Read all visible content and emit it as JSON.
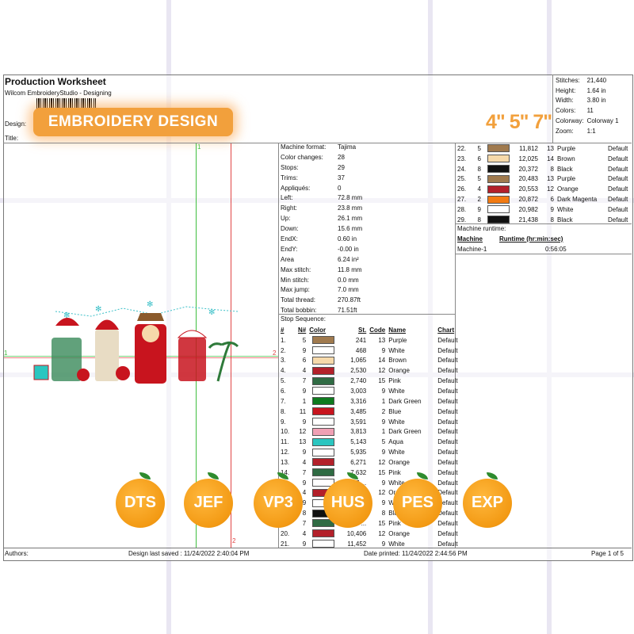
{
  "header": {
    "title": "Production Worksheet",
    "software": "Wilcom EmbroideryStudio - Designing",
    "design_label": "Design:",
    "title_label": "Title:",
    "banner": "EMBROIDERY DESIGN",
    "sizes": "4\" 5\" 7\""
  },
  "stats": [
    {
      "k": "Stitches:",
      "v": "21,440"
    },
    {
      "k": "Height:",
      "v": "1.64 in"
    },
    {
      "k": "Width:",
      "v": "3.80 in"
    },
    {
      "k": "Colors:",
      "v": "11"
    },
    {
      "k": "Colorway:",
      "v": "Colorway 1"
    },
    {
      "k": "Zoom:",
      "v": "1:1"
    }
  ],
  "machine_info": [
    {
      "k": "Machine format:",
      "v": "Tajima"
    },
    {
      "k": "Color changes:",
      "v": "28"
    },
    {
      "k": "Stops:",
      "v": "29"
    },
    {
      "k": "Trims:",
      "v": "37"
    },
    {
      "k": "Appliqués:",
      "v": "0"
    },
    {
      "k": "Left:",
      "v": "72.8 mm"
    },
    {
      "k": "Right:",
      "v": "23.8 mm"
    },
    {
      "k": "Up:",
      "v": "26.1 mm"
    },
    {
      "k": "Down:",
      "v": "15.6 mm"
    },
    {
      "k": "EndX:",
      "v": "0.60 in"
    },
    {
      "k": "EndY:",
      "v": "-0.00 in"
    },
    {
      "k": "Area",
      "v": "6.24 in²"
    },
    {
      "k": "Max stitch:",
      "v": "11.8 mm"
    },
    {
      "k": "Min stitch:",
      "v": "0.0 mm"
    },
    {
      "k": "Max jump:",
      "v": "7.0 mm"
    },
    {
      "k": "Total thread:",
      "v": "270.87ft"
    },
    {
      "k": "Total bobbin:",
      "v": "71.51ft"
    }
  ],
  "stop_sequence": {
    "label": "Stop Sequence:",
    "headers": [
      "#",
      "N#",
      "Color",
      "St.",
      "Code",
      "Name",
      "Chart"
    ],
    "rows": [
      [
        "1.",
        "5",
        "#a07a4e",
        "241",
        "13",
        "Purple",
        "Default"
      ],
      [
        "2.",
        "9",
        "#ffffff",
        "468",
        "9",
        "White",
        "Default"
      ],
      [
        "3.",
        "6",
        "#f6d9aa",
        "1,065",
        "14",
        "Brown",
        "Default"
      ],
      [
        "4.",
        "4",
        "#b3202a",
        "2,530",
        "12",
        "Orange",
        "Default"
      ],
      [
        "5.",
        "7",
        "#2f6b43",
        "2,740",
        "15",
        "Pink",
        "Default"
      ],
      [
        "6.",
        "9",
        "#ffffff",
        "3,003",
        "9",
        "White",
        "Default"
      ],
      [
        "7.",
        "1",
        "#0e7a1e",
        "3,316",
        "1",
        "Dark Green",
        "Default"
      ],
      [
        "8.",
        "11",
        "#c8141e",
        "3,485",
        "2",
        "Blue",
        "Default"
      ],
      [
        "9.",
        "9",
        "#ffffff",
        "3,591",
        "9",
        "White",
        "Default"
      ],
      [
        "10.",
        "12",
        "#f0a0b4",
        "3,813",
        "1",
        "Dark Green",
        "Default"
      ],
      [
        "11.",
        "13",
        "#2bc6c0",
        "5,143",
        "5",
        "Aqua",
        "Default"
      ],
      [
        "12.",
        "9",
        "#ffffff",
        "5,935",
        "9",
        "White",
        "Default"
      ],
      [
        "13.",
        "4",
        "#b3202a",
        "6,271",
        "12",
        "Orange",
        "Default"
      ],
      [
        "14.",
        "7",
        "#2f6b43",
        "7,632",
        "15",
        "Pink",
        "Default"
      ],
      [
        "15.",
        "9",
        "#ffffff",
        "7,...",
        "9",
        "White",
        "Default"
      ],
      [
        "16.",
        "4",
        "#b3202a",
        "...",
        "12",
        "Orange",
        "Default"
      ],
      [
        "17.",
        "9",
        "#ffffff",
        "...",
        "9",
        "White",
        "Default"
      ],
      [
        "18.",
        "8",
        "#111111",
        "...",
        "8",
        "Black",
        "Default"
      ],
      [
        "19.",
        "7",
        "#2f6b43",
        "...",
        "15",
        "Pink",
        "Default"
      ],
      [
        "20.",
        "4",
        "#b3202a",
        "10,406",
        "12",
        "Orange",
        "Default"
      ],
      [
        "21.",
        "9",
        "#ffffff",
        "11,452",
        "9",
        "White",
        "Default"
      ]
    ]
  },
  "stop_sequence_cont": [
    [
      "22.",
      "5",
      "#a07a4e",
      "11,812",
      "13",
      "Purple",
      "Default"
    ],
    [
      "23.",
      "6",
      "#f6d9aa",
      "12,025",
      "14",
      "Brown",
      "Default"
    ],
    [
      "24.",
      "8",
      "#111111",
      "20,372",
      "8",
      "Black",
      "Default"
    ],
    [
      "25.",
      "5",
      "#a07a4e",
      "20,483",
      "13",
      "Purple",
      "Default"
    ],
    [
      "26.",
      "4",
      "#b3202a",
      "20,553",
      "12",
      "Orange",
      "Default"
    ],
    [
      "27.",
      "2",
      "#f27a12",
      "20,872",
      "6",
      "Dark Magenta",
      "Default"
    ],
    [
      "28.",
      "9",
      "#ffffff",
      "20,982",
      "9",
      "White",
      "Default"
    ],
    [
      "29.",
      "8",
      "#111111",
      "21,438",
      "8",
      "Black",
      "Default"
    ]
  ],
  "runtime": {
    "label": "Machine runtime:",
    "col_machine": "Machine",
    "col_runtime": "Runtime (hr:min:sec)",
    "machine": "Machine-1",
    "value": "0:56:05"
  },
  "formats": [
    "DTS",
    "JEF",
    "VP3",
    "HUS",
    "PES",
    "EXP"
  ],
  "footer": {
    "authors": "Authors:",
    "saved": "Design last saved : 11/24/2022 2:40:04 PM",
    "printed": "Date printed: 11/24/2022 2:44:56 PM",
    "page": "Page 1 of 5"
  },
  "canvas": {
    "marker_1": "1",
    "marker_2": "2"
  }
}
